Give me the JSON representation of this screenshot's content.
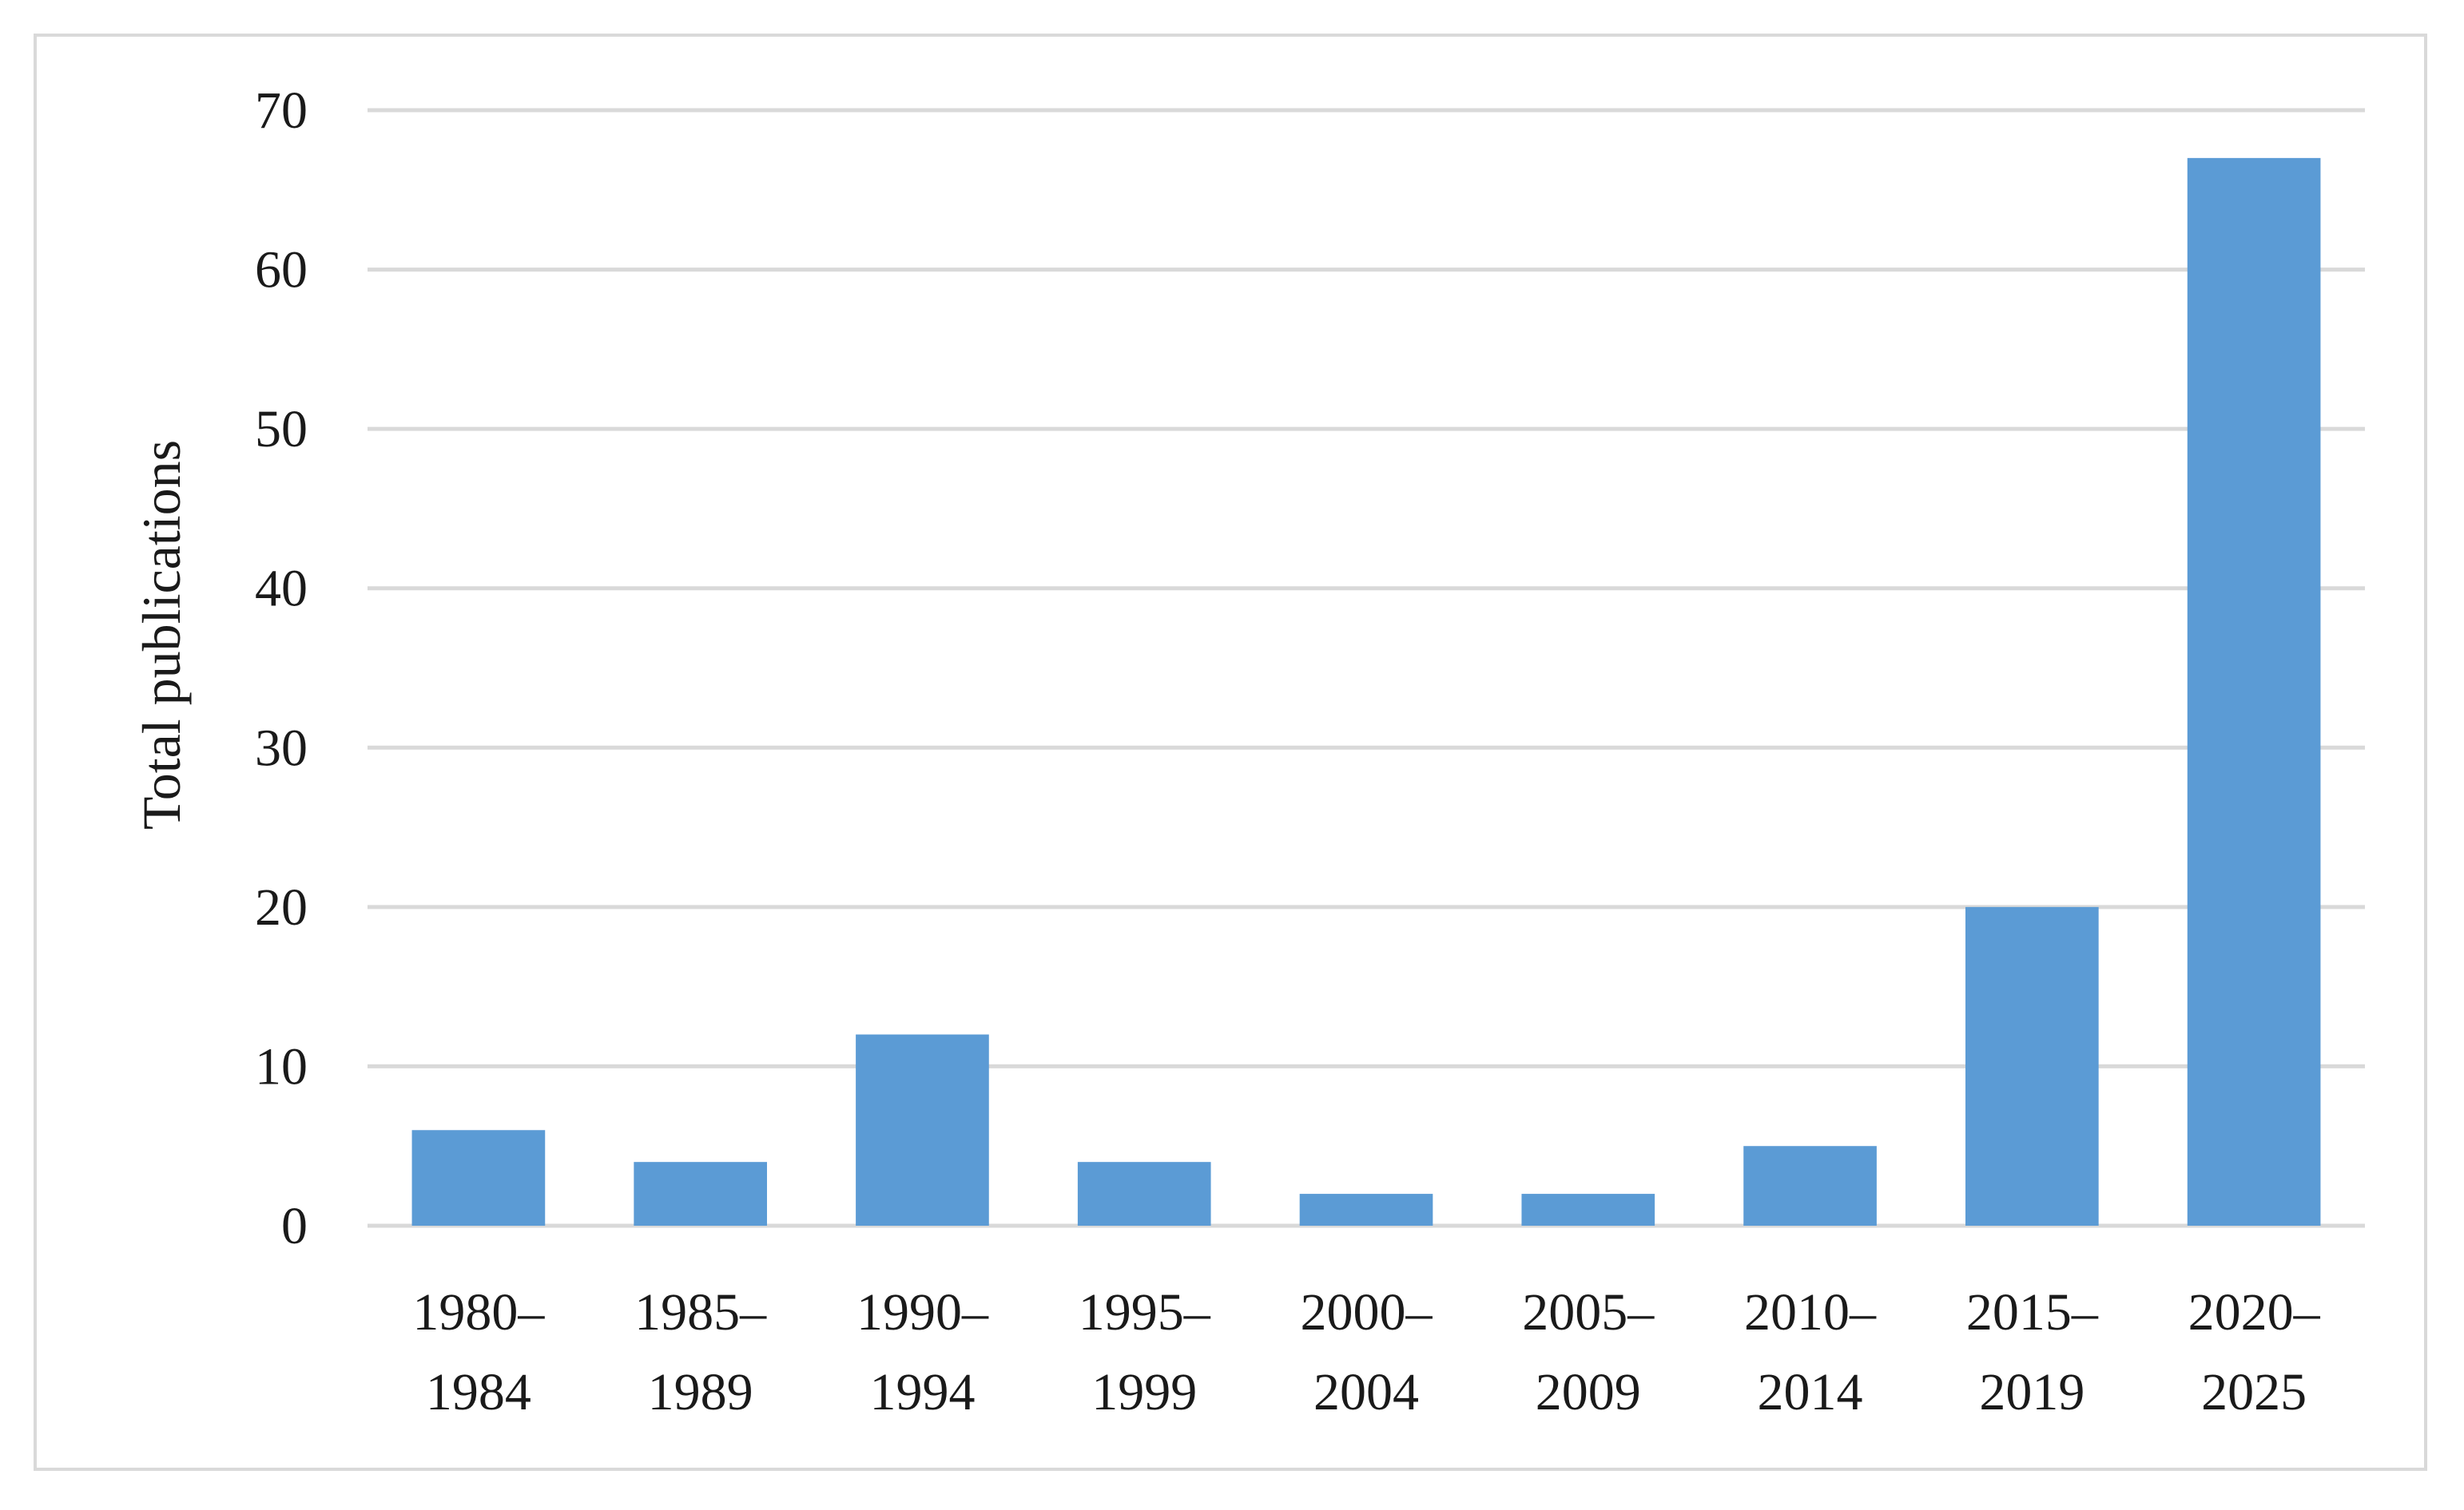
{
  "chart_data": {
    "type": "bar",
    "title": "",
    "xlabel": "",
    "ylabel": "Total publications",
    "ylim": [
      0,
      70
    ],
    "yticks": [
      0,
      10,
      20,
      30,
      40,
      50,
      60,
      70
    ],
    "grid": true,
    "legend": "none",
    "categories": [
      [
        "1980–",
        "1984"
      ],
      [
        "1985–",
        "1989"
      ],
      [
        "1990–",
        "1994"
      ],
      [
        "1995–",
        "1999"
      ],
      [
        "2000–",
        "2004"
      ],
      [
        "2005–",
        "2009"
      ],
      [
        "2010–",
        "2014"
      ],
      [
        "2015–",
        "2019"
      ],
      [
        "2020–",
        "2025"
      ]
    ],
    "values": [
      6,
      4,
      12,
      4,
      2,
      2,
      5,
      20,
      67
    ],
    "bar_color": "#5b9bd5",
    "grid_color": "#d9d9d9"
  }
}
